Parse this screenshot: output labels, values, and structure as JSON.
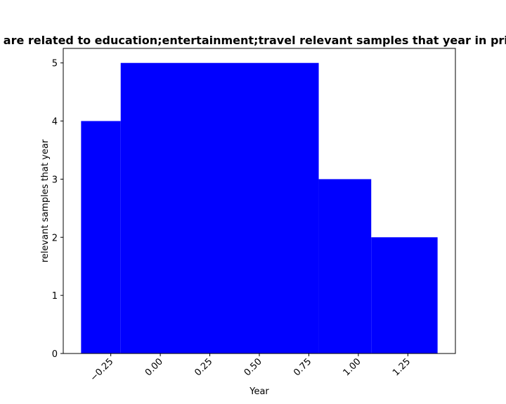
{
  "chart_data": {
    "type": "bar",
    "title": "are related to education;entertainment;travel relevant samples that year in priv",
    "xlabel": "Year",
    "ylabel": "relevant samples that year",
    "bar_color": "#0000ff",
    "xlim": [
      -0.49,
      1.49
    ],
    "ylim": [
      0,
      5.25
    ],
    "bars": [
      {
        "x_start": -0.4,
        "x_end": -0.2,
        "value": 4
      },
      {
        "x_start": -0.2,
        "x_end": 0.8,
        "value": 5
      },
      {
        "x_start": 0.8,
        "x_end": 1.065,
        "value": 3
      },
      {
        "x_start": 1.065,
        "x_end": 1.4,
        "value": 2
      }
    ],
    "x_ticks": [
      -0.25,
      0.0,
      0.25,
      0.5,
      0.75,
      1.0,
      1.25
    ],
    "x_tick_labels": [
      "−0.25",
      "0.00",
      "0.25",
      "0.50",
      "0.75",
      "1.00",
      "1.25"
    ],
    "y_ticks": [
      0,
      1,
      2,
      3,
      4,
      5
    ],
    "y_tick_labels": [
      "0",
      "1",
      "2",
      "3",
      "4",
      "5"
    ],
    "grid": false,
    "legend": "none"
  }
}
